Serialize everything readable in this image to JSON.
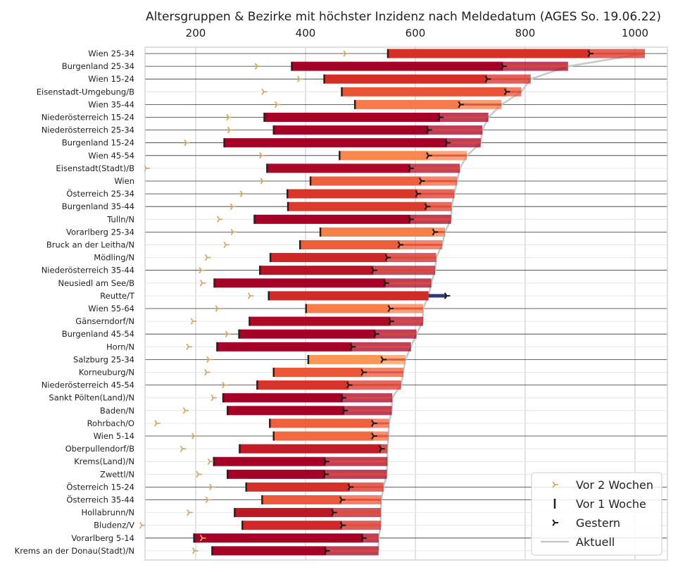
{
  "chart_data": {
    "type": "bar",
    "title": "Altersgruppen & Bezirke mit höchster Inzidenz nach Meldedatum (AGES So. 19.06.22)",
    "xlabel": "",
    "ylabel": "",
    "xlim": [
      100,
      1060
    ],
    "xticks": [
      200,
      400,
      600,
      800,
      1000
    ],
    "grid": true,
    "legend_position": "bottom-right",
    "legend": {
      "vor2wochen": "Vor 2 Wochen",
      "vor1woche": "Vor 1 Woche",
      "gestern": "Gestern",
      "aktuell": "Aktuell"
    },
    "colors": {
      "vor2wochen": "#d4a96a",
      "vor1woche": "#222222",
      "gestern": "#1a1a1a",
      "aktuell": "#c8c8c8",
      "rising": "#2b3a7a"
    },
    "categories": [
      "Wien 25-34",
      "Burgenland 25-34",
      "Wien 15-24",
      "Eisenstadt-Umgebung/B",
      "Wien 35-44",
      "Niederösterreich 15-24",
      "Niederösterreich 25-34",
      "Burgenland 15-24",
      "Wien 45-54",
      "Eisenstadt(Stadt)/B",
      "Wien",
      "Österreich 25-34",
      "Burgenland 35-44",
      "Tulln/N",
      "Vorarlberg 25-34",
      "Bruck an der Leitha/N",
      "Mödling/N",
      "Niederösterreich 35-44",
      "Neusiedl am See/B",
      "Reutte/T",
      "Wien 55-64",
      "Gänserndorf/N",
      "Burgenland 45-54",
      "Horn/N",
      "Salzburg 25-34",
      "Korneuburg/N",
      "Niederösterreich 45-54",
      "Sankt Pölten(Land)/N",
      "Baden/N",
      "Rohrbach/O",
      "Wien 5-14",
      "Oberpullendorf/B",
      "Krems(Land)/N",
      "Zwettl/N",
      "Österreich 15-24",
      "Österreich 35-44",
      "Hollabrunn/N",
      "Bludenz/V",
      "Vorarlberg 5-14",
      "Krems an der Donau(Stadt)/N"
    ],
    "series": [
      {
        "name": "Aktuell",
        "values": [
          1018,
          878,
          810,
          793,
          757,
          733,
          722,
          719,
          694,
          681,
          676,
          671,
          666,
          665,
          654,
          649,
          638,
          636,
          629,
          624,
          614,
          614,
          602,
          592,
          582,
          578,
          574,
          558,
          557,
          552,
          551,
          549,
          549,
          548,
          542,
          538,
          537,
          537,
          533,
          533
        ]
      },
      {
        "name": "Gestern",
        "values": [
          918,
          760,
          731,
          766,
          682,
          645,
          624,
          658,
          624,
          591,
          611,
          604,
          621,
          591,
          635,
          572,
          549,
          524,
          546,
          657,
          554,
          555,
          528,
          485,
          541,
          505,
          479,
          468,
          471,
          524,
          524,
          538,
          437,
          436,
          481,
          466,
          451,
          467,
          505,
          438
        ]
      },
      {
        "name": "Vor 1 Woche",
        "values": [
          550,
          375,
          434,
          466,
          490,
          325,
          342,
          252,
          462,
          330,
          409,
          367,
          368,
          307,
          427,
          390,
          336,
          317,
          234,
          333,
          401,
          298,
          279,
          239,
          405,
          342,
          312,
          250,
          258,
          335,
          342,
          280,
          233,
          258,
          292,
          321,
          271,
          285,
          197,
          230
        ]
      },
      {
        "name": "Vor 2 Wochen",
        "values": [
          473,
          312,
          389,
          324,
          348,
          260,
          262,
          183,
          320,
          110,
          322,
          285,
          267,
          243,
          268,
          255,
          221,
          210,
          212,
          299,
          240,
          195,
          258,
          187,
          224,
          220,
          252,
          232,
          181,
          129,
          197,
          176,
          226,
          205,
          229,
          222,
          188,
          102,
          212,
          198
        ]
      }
    ]
  }
}
